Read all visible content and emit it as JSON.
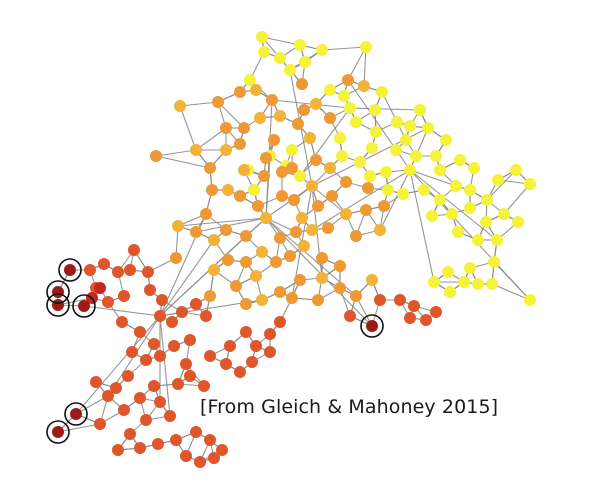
{
  "caption": "[From Gleich & Mahoney 2015]",
  "colors": {
    "edge": "#8a8a8a",
    "yellow": "#f5f23a",
    "light_orange": "#f3b238",
    "orange": "#ee9934",
    "red_orange": "#e0562b",
    "red": "#c42622",
    "dark_red": "#9c1b1a",
    "highlight_ring": "#111111"
  }
}
